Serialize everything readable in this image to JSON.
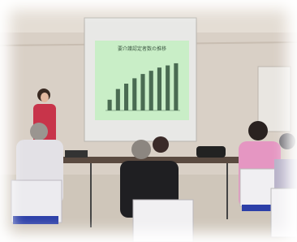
{
  "slide": {
    "title": "要介護認定者数の推移",
    "chart": {
      "type": "bar",
      "values": [
        2,
        4,
        5,
        6,
        6.8,
        7.4,
        8,
        8.4,
        8.8
      ],
      "color": "#4a6b52",
      "ylim": [
        0,
        10
      ]
    }
  }
}
